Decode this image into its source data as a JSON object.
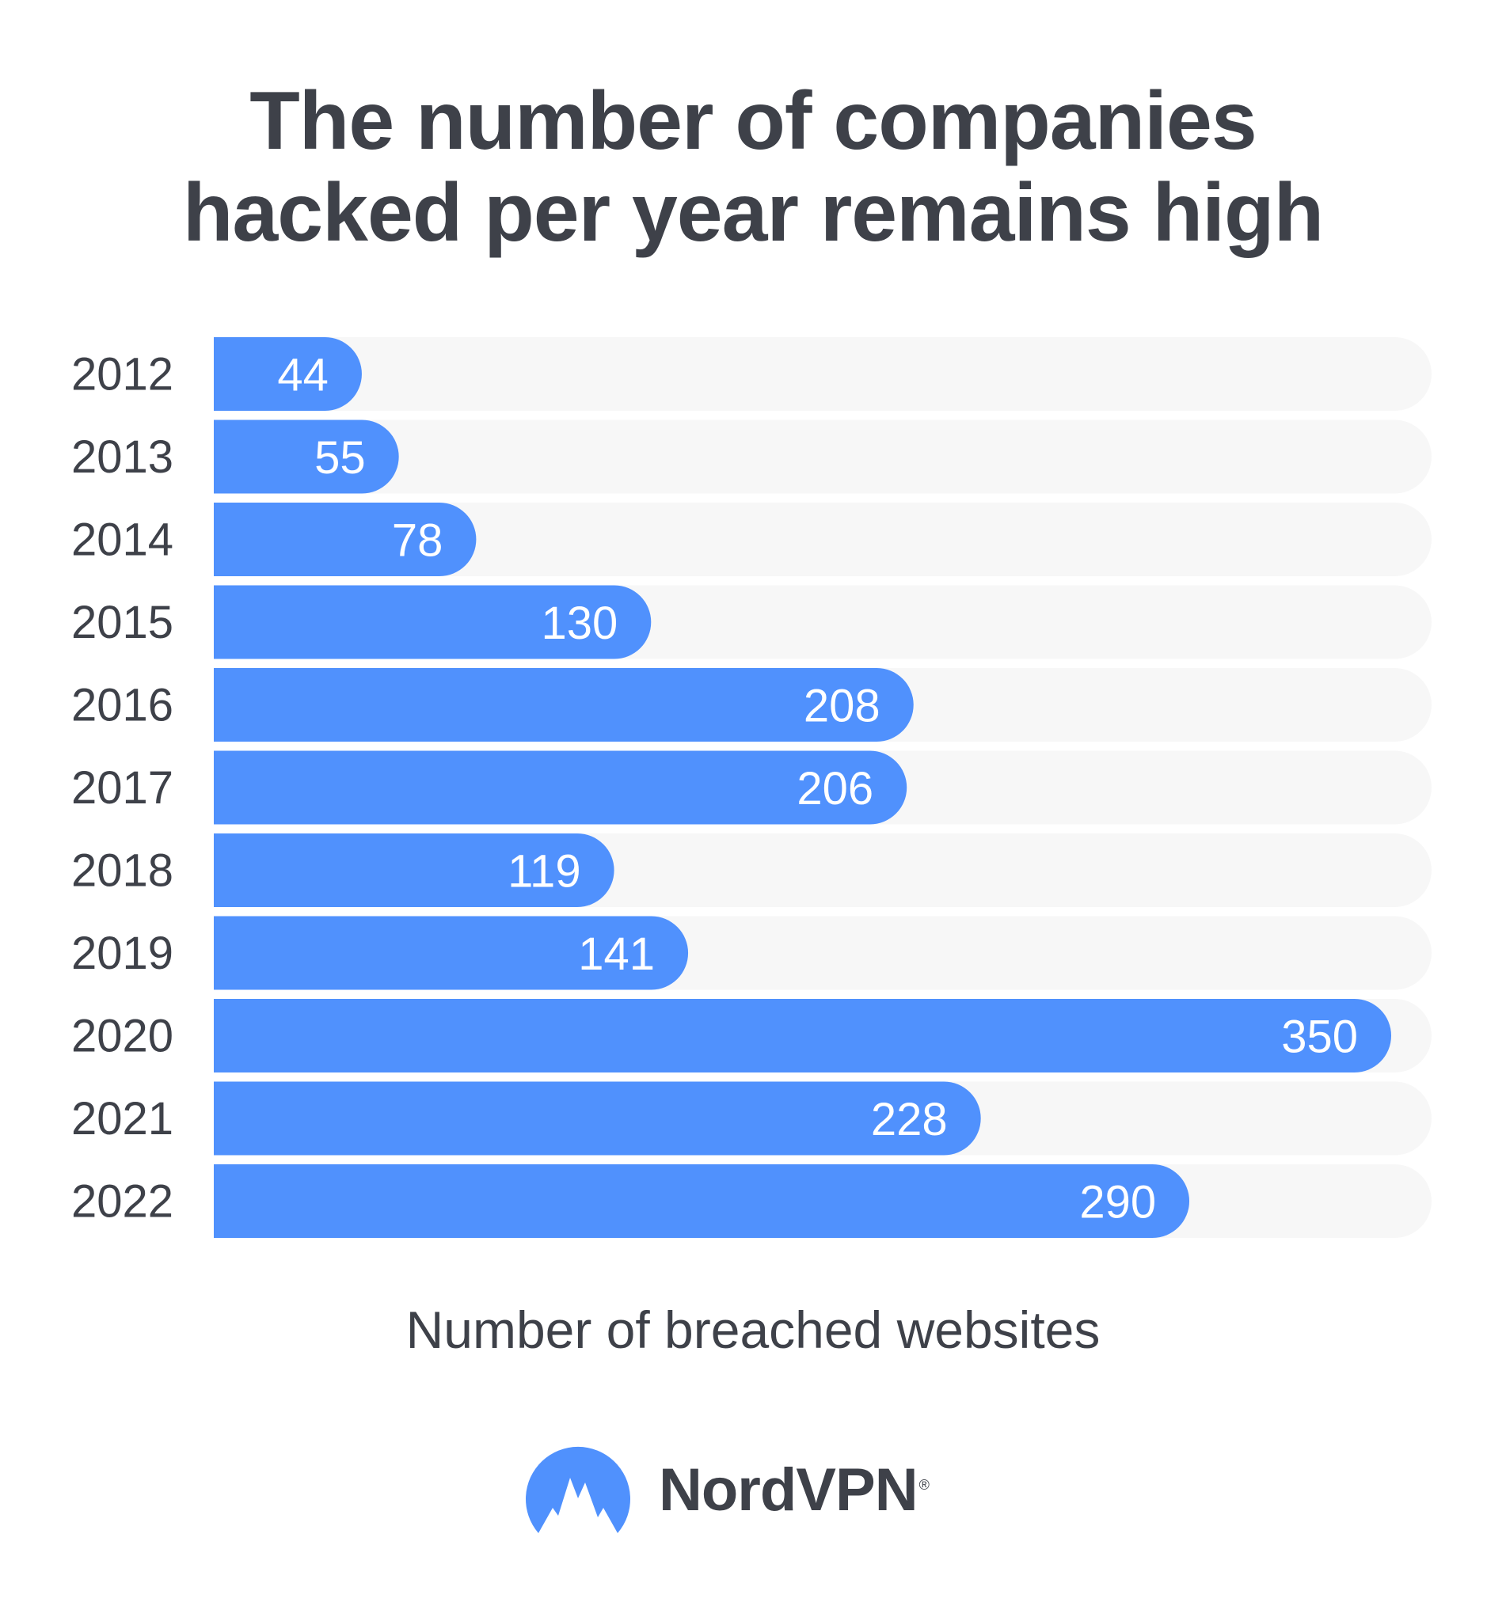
{
  "chart_data": {
    "type": "bar",
    "orientation": "horizontal",
    "title_lines": [
      "The number of companies",
      "hacked per year remains high"
    ],
    "xlabel": "Number of breached websites",
    "ylabel": "",
    "categories": [
      "2012",
      "2013",
      "2014",
      "2015",
      "2016",
      "2017",
      "2018",
      "2019",
      "2020",
      "2021",
      "2022"
    ],
    "values": [
      44,
      55,
      78,
      130,
      208,
      206,
      119,
      141,
      350,
      228,
      290
    ],
    "xlim": [
      0,
      362
    ],
    "grid": false,
    "legend": "none",
    "colors": {
      "bar": "#5091fd",
      "track": "#f7f7f7",
      "bar_label": "#ffffff",
      "text": "#3e4149"
    }
  },
  "brand": {
    "name": "NordVPN",
    "mark": "®",
    "logo_icon": "nordvpn-mountain-icon",
    "logo_color": "#5091fd"
  }
}
